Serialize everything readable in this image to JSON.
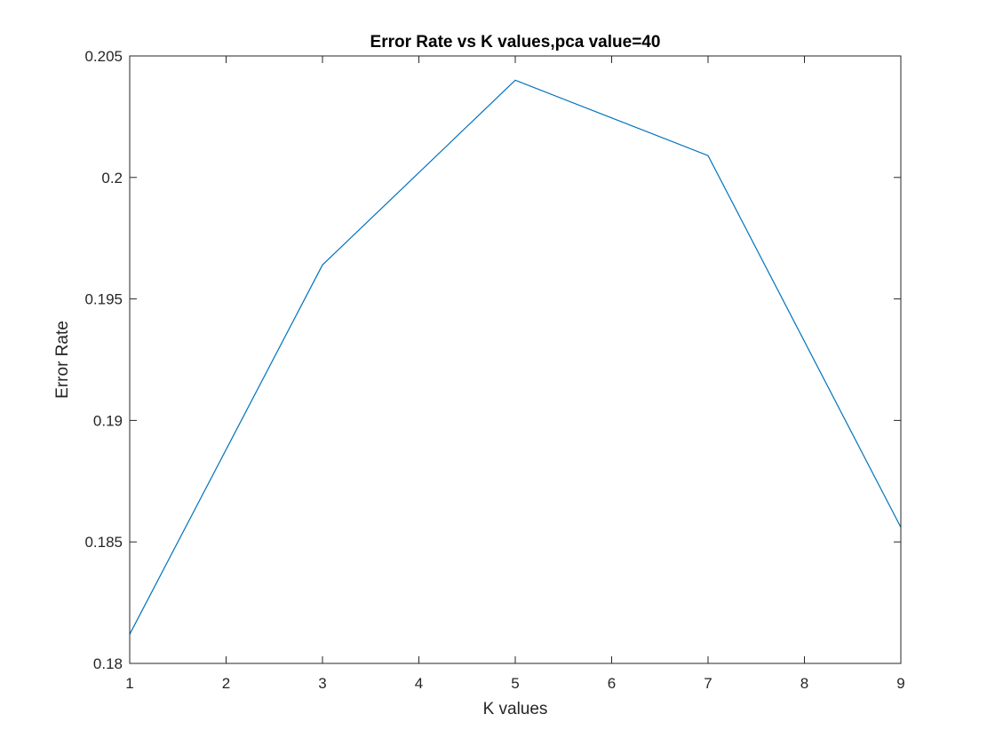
{
  "chart_data": {
    "type": "line",
    "title": "Error Rate vs K values,pca value=40",
    "xlabel": "K values",
    "ylabel": "Error Rate",
    "xlim": [
      1,
      9
    ],
    "ylim": [
      0.18,
      0.205
    ],
    "xticks": [
      1,
      2,
      3,
      4,
      5,
      6,
      7,
      8,
      9
    ],
    "xtick_labels": [
      "1",
      "2",
      "3",
      "4",
      "5",
      "6",
      "7",
      "8",
      "9"
    ],
    "yticks": [
      0.18,
      0.185,
      0.19,
      0.195,
      0.2,
      0.205
    ],
    "ytick_labels": [
      "0.18",
      "0.185",
      "0.19",
      "0.195",
      "0.2",
      "0.205"
    ],
    "grid": false,
    "legend": "none",
    "series": [
      {
        "x": [
          1,
          3,
          5,
          7,
          9
        ],
        "y": [
          0.1812,
          0.1964,
          0.204,
          0.2009,
          0.1856
        ],
        "color": "#0072BD"
      }
    ]
  }
}
